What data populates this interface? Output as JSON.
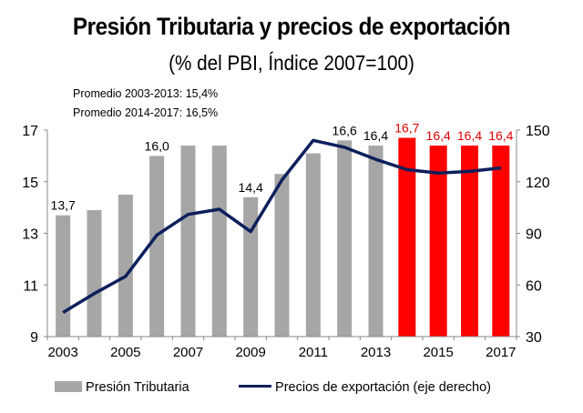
{
  "title": "Presión Tributaria y precios de exportación",
  "subtitle": "(% del PBI, Índice 2007=100)",
  "notes": [
    "Promedio 2003-2013: 15,4%",
    "Promedio 2014-2017: 16,5%"
  ],
  "chart_data": {
    "type": "bar+line",
    "categories": [
      "2003",
      "2004",
      "2005",
      "2006",
      "2007",
      "2008",
      "2009",
      "2010",
      "2011",
      "2012",
      "2013",
      "2014",
      "2015",
      "2016",
      "2017"
    ],
    "x_tick_labels": [
      "2003",
      "2005",
      "2007",
      "2009",
      "2011",
      "2013",
      "2015",
      "2017"
    ],
    "series": [
      {
        "name": "Presión Tributaria",
        "type": "bar",
        "axis": "left",
        "values": [
          13.7,
          13.9,
          14.5,
          16.0,
          16.4,
          16.4,
          14.4,
          15.3,
          16.1,
          16.6,
          16.4,
          16.7,
          16.4,
          16.4,
          16.4
        ],
        "data_labels": [
          "13,7",
          null,
          null,
          "16,0",
          null,
          null,
          "14,4",
          null,
          null,
          "16,6",
          "16,4",
          "16,7",
          "16,4",
          "16,4",
          "16,4"
        ],
        "color": "#a6a6a6",
        "highlight_color": "#ff0000",
        "highlight_from": "2014"
      },
      {
        "name": "Precios de exportación (eje derecho)",
        "type": "line",
        "axis": "right",
        "values": [
          44,
          55,
          65,
          89,
          101,
          104,
          91,
          121,
          144,
          140,
          133,
          127,
          125,
          126,
          128
        ],
        "color": "#0d1f5c"
      }
    ],
    "y_left": {
      "range": [
        9,
        17
      ],
      "ticks": [
        9,
        11,
        13,
        15,
        17
      ]
    },
    "y_right": {
      "range": [
        30,
        150
      ],
      "ticks": [
        30,
        60,
        90,
        120,
        150
      ]
    },
    "legend_placement": "bottom",
    "grid": false
  }
}
